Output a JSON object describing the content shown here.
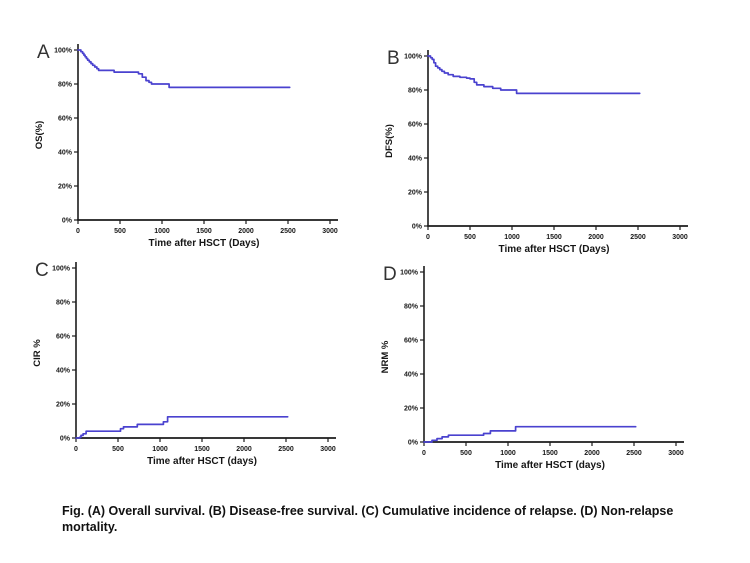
{
  "figure": {
    "caption": "Fig. (A) Overall survival. (B) Disease-free survival. (C) Cumulative incidence of relapse. (D) Non-relapse mortality."
  },
  "colors": {
    "curve": "#4a42cf",
    "axis": "#1c1c1c",
    "text": "#161616",
    "letter": "#333333"
  },
  "chart_data": [
    {
      "type": "line",
      "step": true,
      "panel": "A",
      "ylabel": "OS(%)",
      "xlabel": "Time after HSCT (Days)",
      "xlim": [
        0,
        3000
      ],
      "ylim": [
        0,
        100
      ],
      "x_ticks": [
        0,
        500,
        1000,
        1500,
        2000,
        2500,
        3000
      ],
      "y_ticks": [
        {
          "v": 0,
          "label": "0%"
        },
        {
          "v": 20,
          "label": "20%"
        },
        {
          "v": 40,
          "label": "40%"
        },
        {
          "v": 60,
          "label": "60%"
        },
        {
          "v": 80,
          "label": "80%"
        },
        {
          "v": 100,
          "label": "100%"
        }
      ],
      "points": [
        [
          0,
          100
        ],
        [
          35,
          99
        ],
        [
          55,
          98
        ],
        [
          70,
          97
        ],
        [
          85,
          96
        ],
        [
          100,
          95
        ],
        [
          115,
          94
        ],
        [
          135,
          93
        ],
        [
          155,
          92
        ],
        [
          175,
          91
        ],
        [
          200,
          90
        ],
        [
          225,
          89
        ],
        [
          245,
          88
        ],
        [
          430,
          87
        ],
        [
          720,
          86
        ],
        [
          765,
          84
        ],
        [
          810,
          82
        ],
        [
          845,
          81
        ],
        [
          875,
          80
        ],
        [
          1085,
          78
        ],
        [
          2520,
          78
        ]
      ]
    },
    {
      "type": "line",
      "step": true,
      "panel": "B",
      "ylabel": "DFS(%)",
      "xlabel": "Time after HSCT (Days)",
      "xlim": [
        0,
        3000
      ],
      "ylim": [
        0,
        100
      ],
      "x_ticks": [
        0,
        500,
        1000,
        1500,
        2000,
        2500,
        3000
      ],
      "y_ticks": [
        {
          "v": 0,
          "label": "0%"
        },
        {
          "v": 20,
          "label": "20%"
        },
        {
          "v": 40,
          "label": "40%"
        },
        {
          "v": 60,
          "label": "60%"
        },
        {
          "v": 80,
          "label": "80%"
        },
        {
          "v": 100,
          "label": "100%"
        }
      ],
      "points": [
        [
          0,
          100
        ],
        [
          30,
          99
        ],
        [
          50,
          98
        ],
        [
          70,
          96
        ],
        [
          90,
          94
        ],
        [
          115,
          93
        ],
        [
          140,
          92
        ],
        [
          165,
          91
        ],
        [
          195,
          90
        ],
        [
          240,
          89
        ],
        [
          300,
          88
        ],
        [
          380,
          87.5
        ],
        [
          460,
          87
        ],
        [
          500,
          86.5
        ],
        [
          550,
          84.5
        ],
        [
          580,
          83
        ],
        [
          665,
          82
        ],
        [
          770,
          81
        ],
        [
          865,
          80
        ],
        [
          1055,
          78
        ],
        [
          2520,
          78
        ]
      ]
    },
    {
      "type": "line",
      "step": true,
      "panel": "C",
      "ylabel": "CIR %",
      "xlabel": "Time after HSCT (days)",
      "xlim": [
        0,
        3000
      ],
      "ylim": [
        0,
        100
      ],
      "x_ticks": [
        0,
        500,
        1000,
        1500,
        2000,
        2500,
        3000
      ],
      "y_ticks": [
        {
          "v": 0,
          "label": "0%"
        },
        {
          "v": 20,
          "label": "20%"
        },
        {
          "v": 40,
          "label": "40%"
        },
        {
          "v": 60,
          "label": "60%"
        },
        {
          "v": 80,
          "label": "80%"
        },
        {
          "v": 100,
          "label": "100%"
        }
      ],
      "points": [
        [
          0,
          0
        ],
        [
          45,
          0.5
        ],
        [
          60,
          1.5
        ],
        [
          85,
          2.5
        ],
        [
          120,
          4
        ],
        [
          530,
          5.5
        ],
        [
          565,
          6.5
        ],
        [
          730,
          8
        ],
        [
          1040,
          9.5
        ],
        [
          1090,
          12.5
        ],
        [
          2520,
          12.5
        ]
      ]
    },
    {
      "type": "line",
      "step": true,
      "panel": "D",
      "ylabel": "NRM %",
      "xlabel": "Time after HSCT (days)",
      "xlim": [
        0,
        3000
      ],
      "ylim": [
        0,
        100
      ],
      "x_ticks": [
        0,
        500,
        1000,
        1500,
        2000,
        2500,
        3000
      ],
      "y_ticks": [
        {
          "v": 0,
          "label": "0%"
        },
        {
          "v": 20,
          "label": "20%"
        },
        {
          "v": 40,
          "label": "40%"
        },
        {
          "v": 60,
          "label": "60%"
        },
        {
          "v": 80,
          "label": "80%"
        },
        {
          "v": 100,
          "label": "100%"
        }
      ],
      "points": [
        [
          0,
          0
        ],
        [
          95,
          1
        ],
        [
          155,
          2
        ],
        [
          215,
          3
        ],
        [
          290,
          4
        ],
        [
          710,
          5
        ],
        [
          790,
          6.5
        ],
        [
          1090,
          9
        ],
        [
          2520,
          9
        ]
      ]
    }
  ]
}
